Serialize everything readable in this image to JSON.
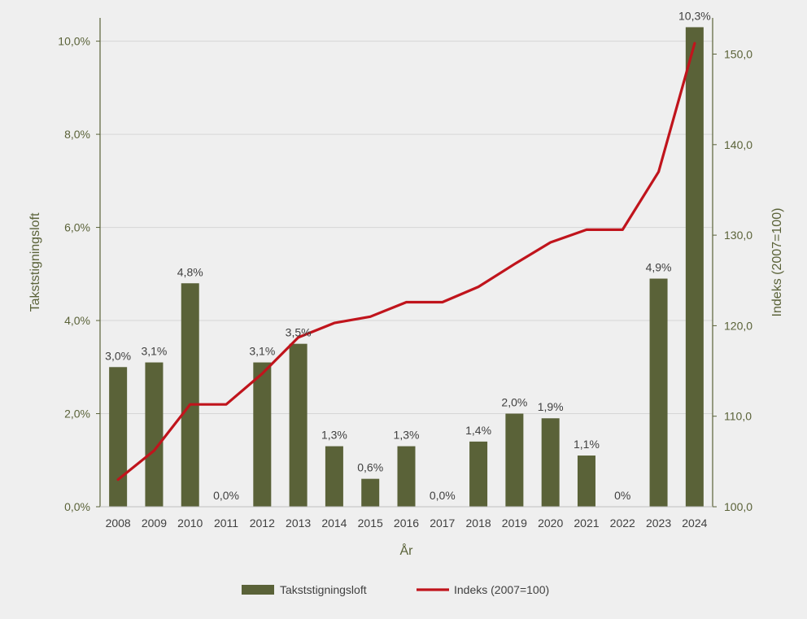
{
  "chart_data": {
    "type": "bar",
    "categories": [
      "2008",
      "2009",
      "2010",
      "2011",
      "2012",
      "2013",
      "2014",
      "2015",
      "2016",
      "2017",
      "2018",
      "2019",
      "2020",
      "2021",
      "2022",
      "2023",
      "2024"
    ],
    "xlabel": "År",
    "ylabel": "Takststigningsloft",
    "y2label": "Indeks (2007=100)",
    "ylim": [
      0,
      10.5
    ],
    "y2lim": [
      100,
      154
    ],
    "yticks": [
      "0,0%",
      "2,0%",
      "4,0%",
      "6,0%",
      "8,0%",
      "10,0%"
    ],
    "y2ticks": [
      "100,0",
      "110,0",
      "120,0",
      "130,0",
      "140,0",
      "150,0"
    ],
    "grid": true,
    "legend_position": "bottom",
    "series": [
      {
        "name": "Takststigningsloft",
        "type": "bar",
        "color": "#5a6238",
        "values": [
          3.0,
          3.1,
          4.8,
          0.0,
          3.1,
          3.5,
          1.3,
          0.6,
          1.3,
          0.0,
          1.4,
          2.0,
          1.9,
          1.1,
          0.0,
          4.9,
          10.3
        ],
        "labels": [
          "3,0%",
          "3,1%",
          "4,8%",
          "0,0%",
          "3,1%",
          "3,5%",
          "1,3%",
          "0,6%",
          "1,3%",
          "0,0%",
          "1,4%",
          "2,0%",
          "1,9%",
          "1,1%",
          "0%",
          "4,9%",
          "10,3%"
        ]
      },
      {
        "name": "Indeks (2007=100)",
        "type": "line",
        "axis": "right",
        "color": "#c0141c",
        "values": [
          103.0,
          106.2,
          111.3,
          111.3,
          114.7,
          118.7,
          120.3,
          121.0,
          122.6,
          122.6,
          124.3,
          126.8,
          129.2,
          130.6,
          130.6,
          137.0,
          151.2
        ]
      }
    ]
  }
}
